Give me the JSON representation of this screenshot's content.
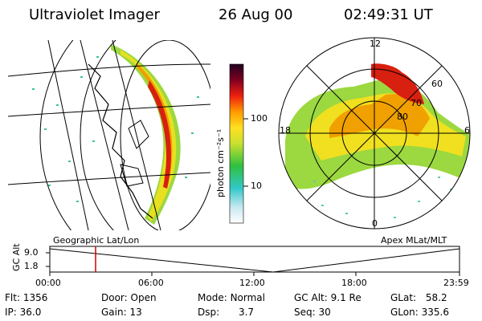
{
  "header": {
    "instrument": "Ultraviolet Imager",
    "date": "26 Aug 00",
    "time": "02:49:31 UT"
  },
  "colorbar": {
    "unit_label": "photon cm⁻²s⁻¹",
    "ticks": [
      "100",
      "10"
    ]
  },
  "left_panel": {
    "caption": "Geographic Lat/Lon"
  },
  "right_panel": {
    "caption": "Apex MLat/MLT",
    "mlt_labels": {
      "top": "12",
      "bottom": "0",
      "left": "18",
      "right": "6"
    },
    "lat_labels": [
      "60",
      "70",
      "80"
    ]
  },
  "altitude_plot": {
    "ylabel": "GC Alt",
    "yticks": [
      "9.0",
      "1.8"
    ],
    "xticks": [
      "00:00",
      "06:00",
      "12:00",
      "18:00",
      "23:59"
    ],
    "marker_color": "#cc0000"
  },
  "status": {
    "flt": {
      "label": "Flt:",
      "value": "1356"
    },
    "ip": {
      "label": "IP:",
      "value": "36.0"
    },
    "door": {
      "label": "Door:",
      "value": "Open"
    },
    "gain": {
      "label": "Gain:",
      "value": "13"
    },
    "mode": {
      "label": "Mode:",
      "value": "Normal"
    },
    "dsp": {
      "label": "Dsp:",
      "value": "3.7"
    },
    "gcalt": {
      "label": "GC Alt:",
      "value": "9.1 Re"
    },
    "seq": {
      "label": "Seq:",
      "value": "30"
    },
    "glat": {
      "label": "GLat:",
      "value": "58.2"
    },
    "glon": {
      "label": "GLon:",
      "value": "335.6"
    }
  }
}
